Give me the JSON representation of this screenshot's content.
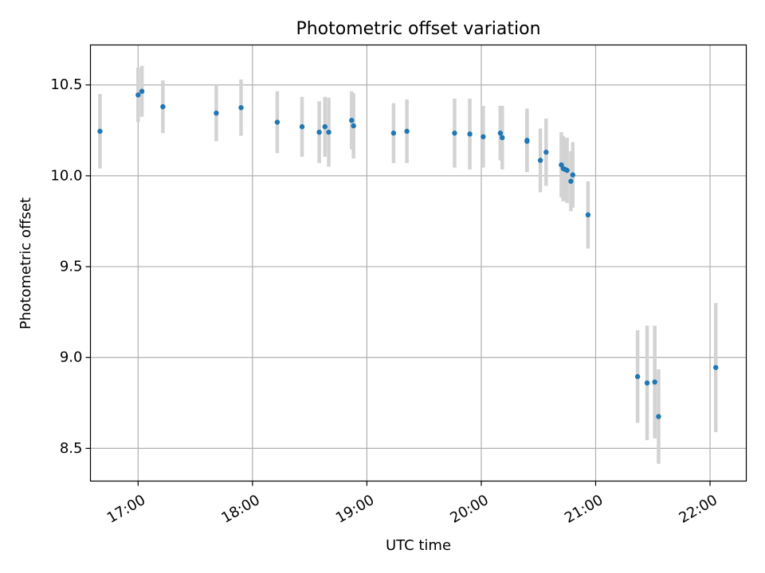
{
  "chart_data": {
    "type": "scatter",
    "title": "Photometric offset variation",
    "xlabel": "UTC time",
    "ylabel": "Photometric offset",
    "x_ticks": [
      "17:00",
      "18:00",
      "19:00",
      "20:00",
      "21:00",
      "22:00"
    ],
    "y_ticks": [
      "8.5",
      "9.0",
      "9.5",
      "10.0",
      "10.5"
    ],
    "xlim": [
      "16:35",
      "22:19"
    ],
    "ylim": [
      8.32,
      10.72
    ],
    "grid": true,
    "colors": {
      "point": "#1f77b4",
      "errorbar": "#d3d3d3",
      "grid": "#b0b0b0"
    },
    "points": [
      {
        "x": "16:40",
        "y": 10.245,
        "yerr": 0.205
      },
      {
        "x": "17:00",
        "y": 10.445,
        "yerr": 0.15
      },
      {
        "x": "17:02",
        "y": 10.465,
        "yerr": 0.14
      },
      {
        "x": "17:13",
        "y": 10.38,
        "yerr": 0.145
      },
      {
        "x": "17:41",
        "y": 10.345,
        "yerr": 0.155
      },
      {
        "x": "17:54",
        "y": 10.375,
        "yerr": 0.155
      },
      {
        "x": "18:13",
        "y": 10.295,
        "yerr": 0.17
      },
      {
        "x": "18:26",
        "y": 10.27,
        "yerr": 0.165
      },
      {
        "x": "18:35",
        "y": 10.24,
        "yerr": 0.17
      },
      {
        "x": "18:38",
        "y": 10.27,
        "yerr": 0.165
      },
      {
        "x": "18:40",
        "y": 10.24,
        "yerr": 0.19
      },
      {
        "x": "18:52",
        "y": 10.305,
        "yerr": 0.16
      },
      {
        "x": "18:53",
        "y": 10.275,
        "yerr": 0.18
      },
      {
        "x": "19:14",
        "y": 10.235,
        "yerr": 0.165
      },
      {
        "x": "19:21",
        "y": 10.245,
        "yerr": 0.175
      },
      {
        "x": "19:46",
        "y": 10.235,
        "yerr": 0.19
      },
      {
        "x": "19:54",
        "y": 10.23,
        "yerr": 0.195
      },
      {
        "x": "20:01",
        "y": 10.215,
        "yerr": 0.17
      },
      {
        "x": "20:10",
        "y": 10.235,
        "yerr": 0.15
      },
      {
        "x": "20:11",
        "y": 10.21,
        "yerr": 0.175
      },
      {
        "x": "20:24",
        "y": 10.195,
        "yerr": 0.175
      },
      {
        "x": "20:24",
        "y": 10.19,
        "yerr": 0.165
      },
      {
        "x": "20:31",
        "y": 10.085,
        "yerr": 0.175
      },
      {
        "x": "20:34",
        "y": 10.13,
        "yerr": 0.185
      },
      {
        "x": "20:42",
        "y": 10.06,
        "yerr": 0.18
      },
      {
        "x": "20:43",
        "y": 10.04,
        "yerr": 0.18
      },
      {
        "x": "20:44",
        "y": 10.035,
        "yerr": 0.17
      },
      {
        "x": "20:45",
        "y": 10.03,
        "yerr": 0.18
      },
      {
        "x": "20:47",
        "y": 9.97,
        "yerr": 0.165
      },
      {
        "x": "20:48",
        "y": 10.005,
        "yerr": 0.18
      },
      {
        "x": "20:56",
        "y": 9.785,
        "yerr": 0.185
      },
      {
        "x": "21:22",
        "y": 8.895,
        "yerr": 0.255
      },
      {
        "x": "21:27",
        "y": 8.86,
        "yerr": 0.315
      },
      {
        "x": "21:31",
        "y": 8.865,
        "yerr": 0.31
      },
      {
        "x": "21:33",
        "y": 8.675,
        "yerr": 0.26
      },
      {
        "x": "22:03",
        "y": 8.945,
        "yerr": 0.355
      }
    ]
  }
}
